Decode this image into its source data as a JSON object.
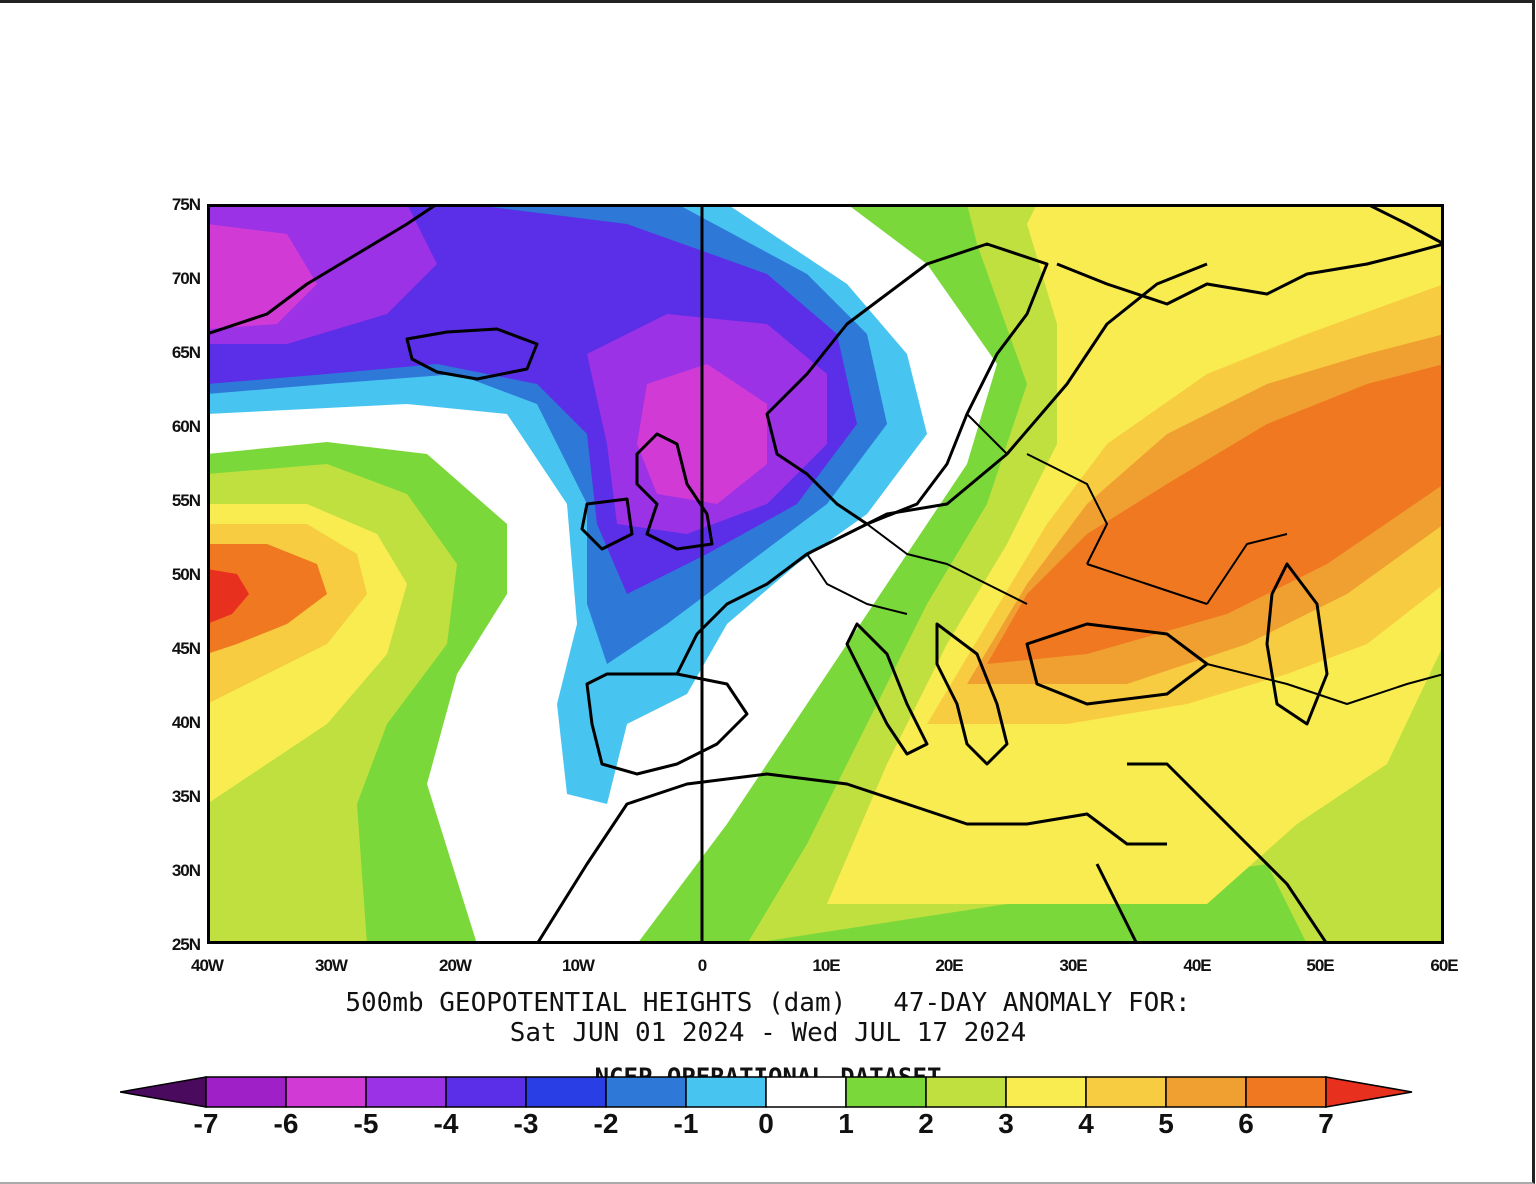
{
  "map": {
    "lat_labels": [
      "75N",
      "70N",
      "65N",
      "60N",
      "55N",
      "50N",
      "45N",
      "40N",
      "35N",
      "30N",
      "25N"
    ],
    "lon_labels": [
      "40W",
      "30W",
      "20W",
      "10W",
      "0",
      "10E",
      "20E",
      "30E",
      "40E",
      "50E",
      "60E"
    ],
    "extent": {
      "lon_min": -40,
      "lon_max": 60,
      "lat_min": 25,
      "lat_max": 75
    }
  },
  "caption": {
    "line1": "500mb GEOPOTENTIAL HEIGHTS (dam)   47-DAY ANOMALY FOR:",
    "line2": "Sat JUN 01 2024 - Wed JUL 17 2024",
    "line3": "NCEP OPERATIONAL DATASET"
  },
  "colorbar": {
    "labels": [
      "-7",
      "-6",
      "-5",
      "-4",
      "-3",
      "-2",
      "-1",
      "0",
      "1",
      "2",
      "3",
      "4",
      "5",
      "6",
      "7"
    ],
    "colors": [
      "#4a0a5e",
      "#a020c8",
      "#d23ad6",
      "#9b32e6",
      "#5b2ee8",
      "#2a3ee6",
      "#2e78d8",
      "#48c4f0",
      "#ffffff",
      "#7ad83a",
      "#c0e040",
      "#f8ec50",
      "#f8cc40",
      "#f0a030",
      "#f07820",
      "#e8301e"
    ]
  }
}
